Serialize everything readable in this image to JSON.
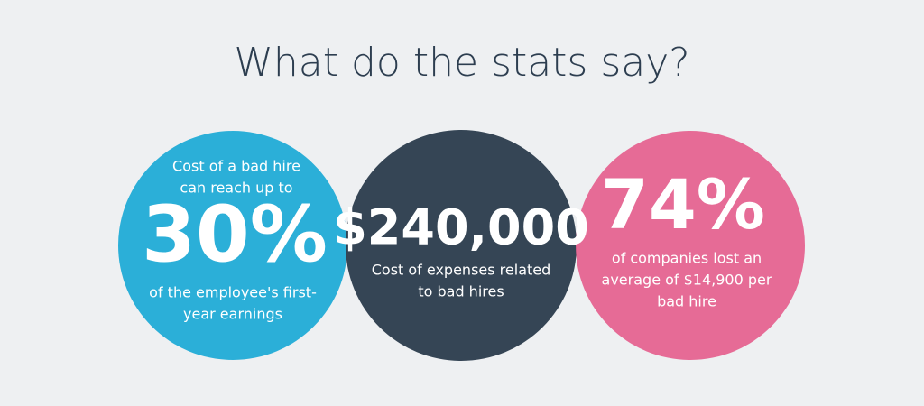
{
  "title": "What do the stats say?",
  "circles": [
    {
      "top_lines": [
        "Cost of a bad hire",
        "can reach up to"
      ],
      "stat": "30%",
      "bottom_lines": [
        "of the employee's first-",
        "year earnings"
      ]
    },
    {
      "top_lines": [],
      "stat": "$240,000",
      "bottom_lines": [
        "Cost of expenses related",
        "to bad hires"
      ]
    },
    {
      "top_lines": [],
      "stat": "74%",
      "bottom_lines": [
        "of companies lost an",
        "average of $14,900 per",
        "bad hire"
      ]
    }
  ]
}
